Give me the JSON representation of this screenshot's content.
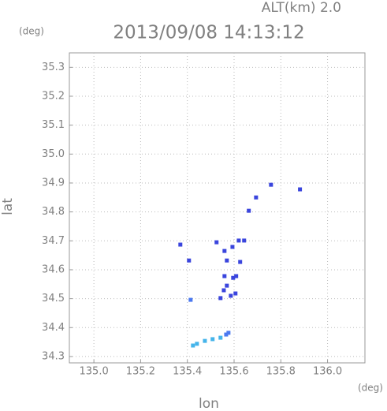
{
  "chart_data": {
    "type": "scatter",
    "title": "2013/09/08 14:13:12",
    "subtitle": "ALT(km) 2.0",
    "x_label": "lon",
    "y_label": "lat",
    "x_unit": "(deg)",
    "y_unit": "(deg)",
    "xlim": [
      134.895,
      136.16
    ],
    "ylim": [
      34.278,
      35.35
    ],
    "xticks": [
      {
        "value": 135.0,
        "label": "135.0"
      },
      135.2,
      135.4,
      135.6,
      135.8,
      {
        "value": 136.0,
        "label": "136.0"
      }
    ],
    "yticks": [
      34.3,
      34.4,
      34.5,
      34.6,
      34.7,
      34.8,
      34.9,
      {
        "value": 35.0,
        "label": "35.0"
      },
      35.1,
      35.2,
      35.3
    ],
    "grid": true,
    "series": [
      {
        "color": "#3a45dd",
        "x": [
          135.37,
          135.407,
          135.525,
          135.559,
          135.593,
          135.62,
          135.643,
          135.569,
          135.626,
          135.559,
          135.596,
          135.569,
          135.609,
          135.556,
          135.586,
          135.606,
          135.542,
          135.663,
          135.694,
          135.758,
          135.882
        ],
        "y": [
          34.687,
          34.632,
          34.695,
          34.665,
          34.679,
          34.701,
          34.701,
          34.632,
          34.627,
          34.578,
          34.572,
          34.545,
          34.578,
          34.529,
          34.51,
          34.518,
          34.502,
          34.804,
          34.85,
          34.894,
          34.878
        ]
      },
      {
        "color": "#4a78f0",
        "x": [
          135.414,
          135.576,
          135.566
        ],
        "y": [
          34.496,
          34.382,
          34.376
        ]
      },
      {
        "color": "#45b4ea",
        "x": [
          135.542,
          135.508,
          135.475,
          135.441,
          135.424
        ],
        "y": [
          34.365,
          34.36,
          34.354,
          34.344,
          34.338
        ]
      }
    ]
  }
}
